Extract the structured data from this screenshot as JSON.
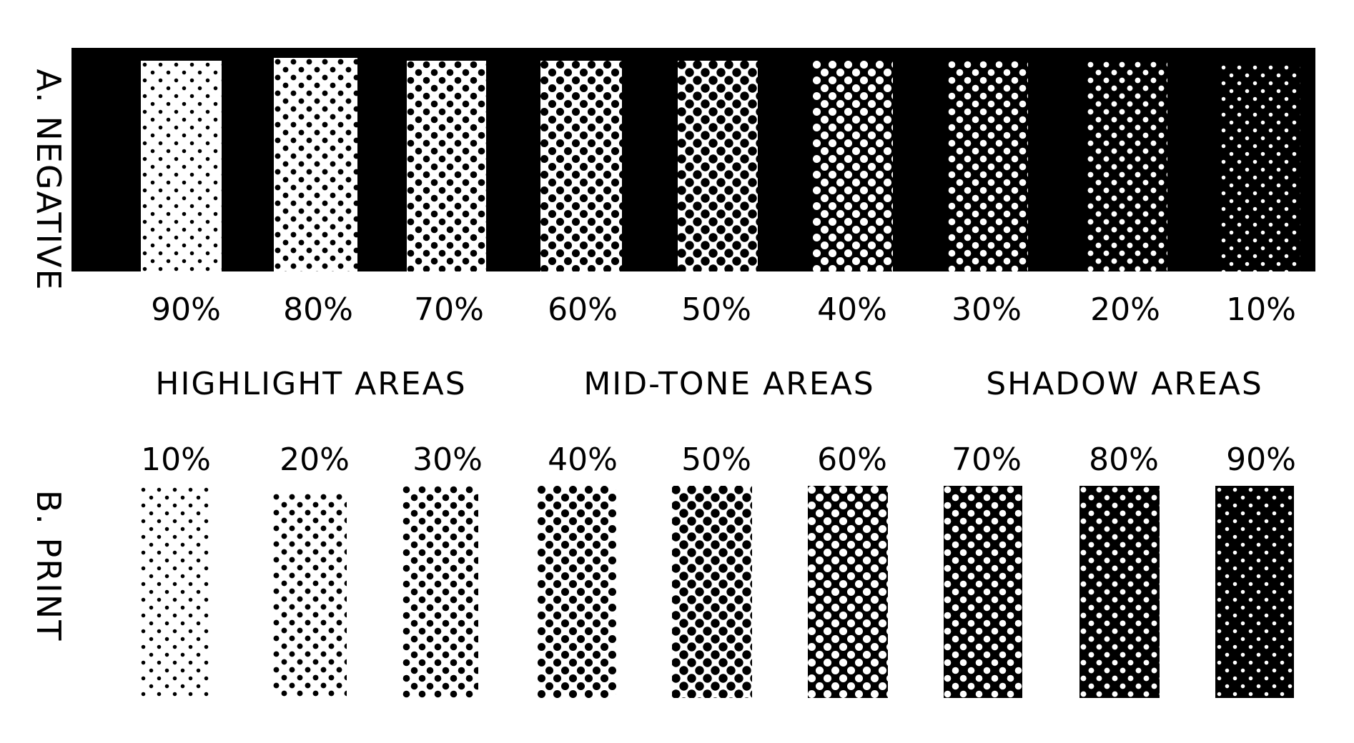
{
  "sections": {
    "negative": {
      "label": "A. NEGATIVE",
      "percentages": [
        "90%",
        "80%",
        "70%",
        "60%",
        "50%",
        "40%",
        "30%",
        "20%",
        "10%"
      ],
      "ink_coverage": [
        0.1,
        0.2,
        0.3,
        0.4,
        0.5,
        0.6,
        0.7,
        0.8,
        0.9
      ]
    },
    "print": {
      "label": "B. PRINT",
      "percentages": [
        "10%",
        "20%",
        "30%",
        "40%",
        "50%",
        "60%",
        "70%",
        "80%",
        "90%"
      ],
      "ink_coverage": [
        0.1,
        0.2,
        0.3,
        0.4,
        0.5,
        0.6,
        0.7,
        0.8,
        0.9
      ]
    }
  },
  "areas": {
    "highlight": "HIGHLIGHT AREAS",
    "midtone": "MID-TONE AREAS",
    "shadow": "SHADOW AREAS"
  },
  "colors": {
    "ink": "#000000",
    "paper": "#ffffff"
  }
}
